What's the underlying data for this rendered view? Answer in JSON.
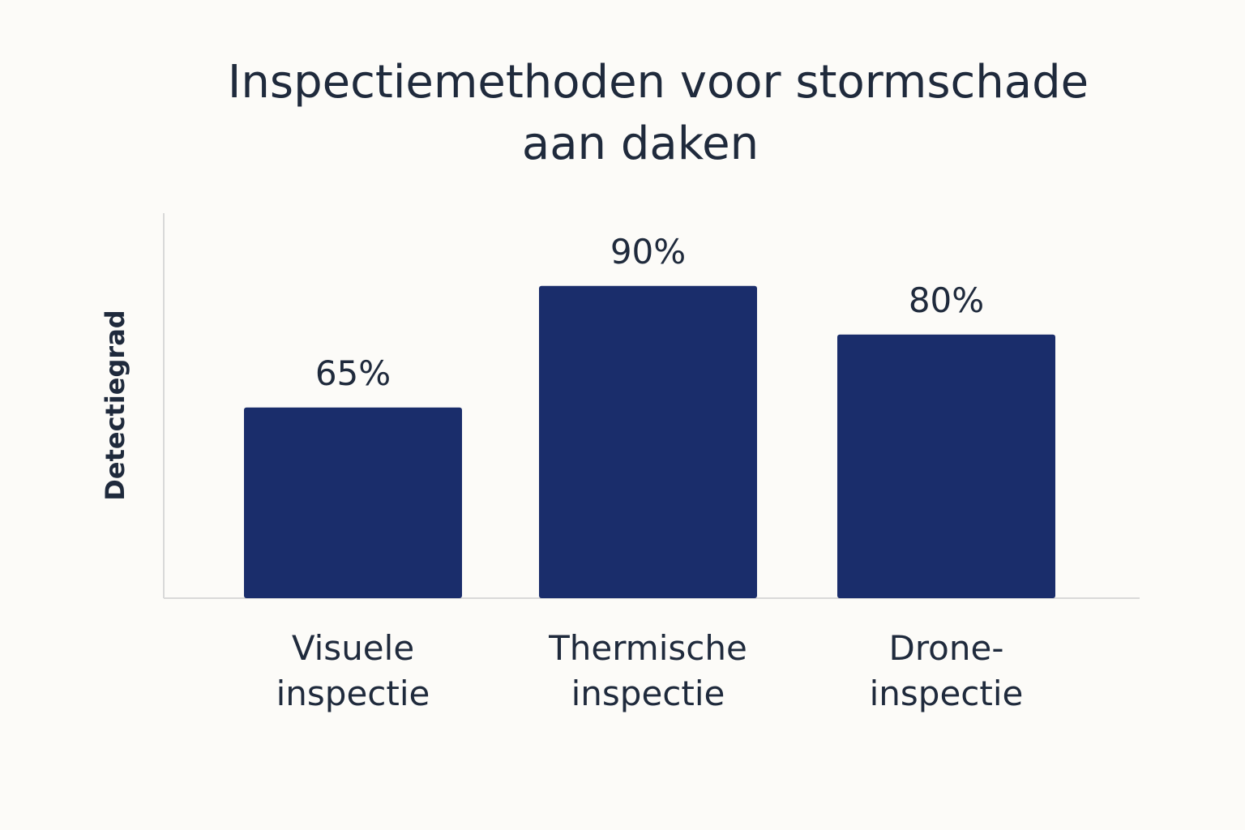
{
  "chart_data": {
    "type": "bar",
    "title_lines": [
      "Inspectiemethoden voor stormschade",
      "aan daken"
    ],
    "categories": [
      [
        "Visuele",
        "inspectie"
      ],
      [
        "Thermische",
        "inspectie"
      ],
      [
        "Drone-",
        "inspectie"
      ]
    ],
    "values": [
      65,
      90,
      80
    ],
    "value_labels": [
      "65%",
      "90%",
      "80%"
    ],
    "xlabel": "",
    "ylabel": "Detectiegrad",
    "ylim": null,
    "grid": false,
    "bar_color": "#1a2d6b",
    "text_color": "#1f2a3c",
    "axis_color": "#d9d9d9"
  }
}
